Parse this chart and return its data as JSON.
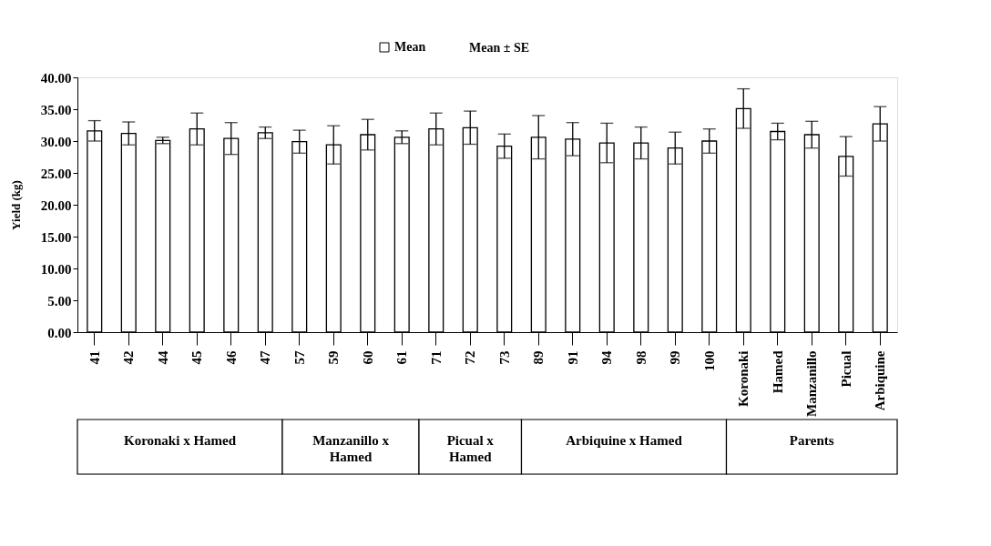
{
  "chart_data": {
    "type": "bar",
    "ylabel": "Yield (kg)",
    "categories": [
      "41",
      "42",
      "44",
      "45",
      "46",
      "47",
      "57",
      "59",
      "60",
      "61",
      "71",
      "72",
      "73",
      "89",
      "91",
      "94",
      "98",
      "99",
      "100",
      "Koronaki",
      "Hamed",
      "Manzanillo",
      "Picual",
      "Arbiquine"
    ],
    "series": [
      {
        "name": "Mean",
        "color": "#ffffff",
        "values": [
          31.6,
          31.2,
          30.1,
          31.9,
          30.4,
          31.3,
          29.9,
          29.4,
          31.0,
          30.6,
          31.9,
          32.1,
          29.2,
          30.6,
          30.3,
          29.7,
          29.7,
          28.9,
          30.0,
          35.1,
          31.5,
          31.0,
          27.6,
          32.7
        ],
        "errors": [
          1.6,
          1.8,
          0.5,
          2.5,
          2.5,
          0.9,
          1.8,
          3.0,
          2.4,
          1.0,
          2.5,
          2.6,
          1.9,
          3.4,
          2.6,
          3.1,
          2.5,
          2.5,
          1.9,
          3.1,
          1.3,
          2.1,
          3.1,
          2.7
        ]
      }
    ],
    "ylim": [
      0,
      40
    ],
    "yticks": [
      {
        "value": 0,
        "label": "0.00"
      },
      {
        "value": 5,
        "label": "5.00"
      },
      {
        "value": 10,
        "label": "10.00"
      },
      {
        "value": 15,
        "label": "15.00"
      },
      {
        "value": 20,
        "label": "20.00"
      },
      {
        "value": 25,
        "label": "25.00"
      },
      {
        "value": 30,
        "label": "30.00"
      },
      {
        "value": 35,
        "label": "35.00"
      },
      {
        "value": 40,
        "label": "40.00"
      }
    ],
    "annotations": [
      "Mean ± SE",
      "Koronaki x Hamed",
      "Manzanillo x Hamed",
      "Picual x Hamed",
      "Arbiquine x Hamed",
      "Parents"
    ],
    "legend": "top",
    "grid": false
  }
}
